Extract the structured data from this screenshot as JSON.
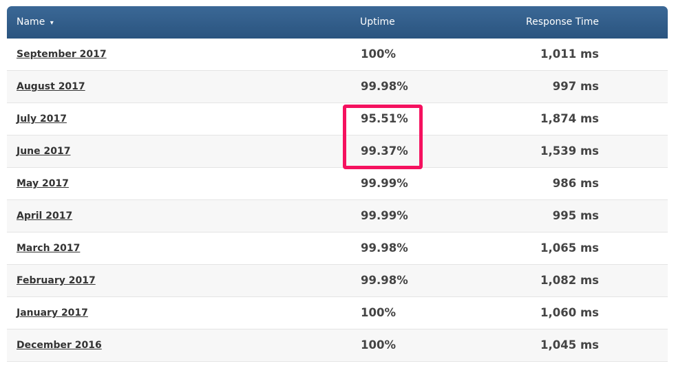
{
  "table": {
    "headers": {
      "name": "Name",
      "sort_indicator": "▾",
      "uptime": "Uptime",
      "response_time": "Response Time"
    },
    "rows": [
      {
        "name": "September 2017",
        "uptime": "100%",
        "response_time": "1,011 ms"
      },
      {
        "name": "August 2017",
        "uptime": "99.98%",
        "response_time": "997 ms"
      },
      {
        "name": "July 2017",
        "uptime": "95.51%",
        "response_time": "1,874 ms"
      },
      {
        "name": "June 2017",
        "uptime": "99.37%",
        "response_time": "1,539 ms"
      },
      {
        "name": "May 2017",
        "uptime": "99.99%",
        "response_time": "986 ms"
      },
      {
        "name": "April 2017",
        "uptime": "99.99%",
        "response_time": "995 ms"
      },
      {
        "name": "March 2017",
        "uptime": "99.98%",
        "response_time": "1,065 ms"
      },
      {
        "name": "February 2017",
        "uptime": "99.98%",
        "response_time": "1,082 ms"
      },
      {
        "name": "January 2017",
        "uptime": "100%",
        "response_time": "1,060 ms"
      },
      {
        "name": "December 2016",
        "uptime": "100%",
        "response_time": "1,045 ms"
      }
    ]
  },
  "colors": {
    "header_bg": "#2f5b87",
    "highlight_border": "#f5115f",
    "alt_row_bg": "#f7f7f7"
  }
}
